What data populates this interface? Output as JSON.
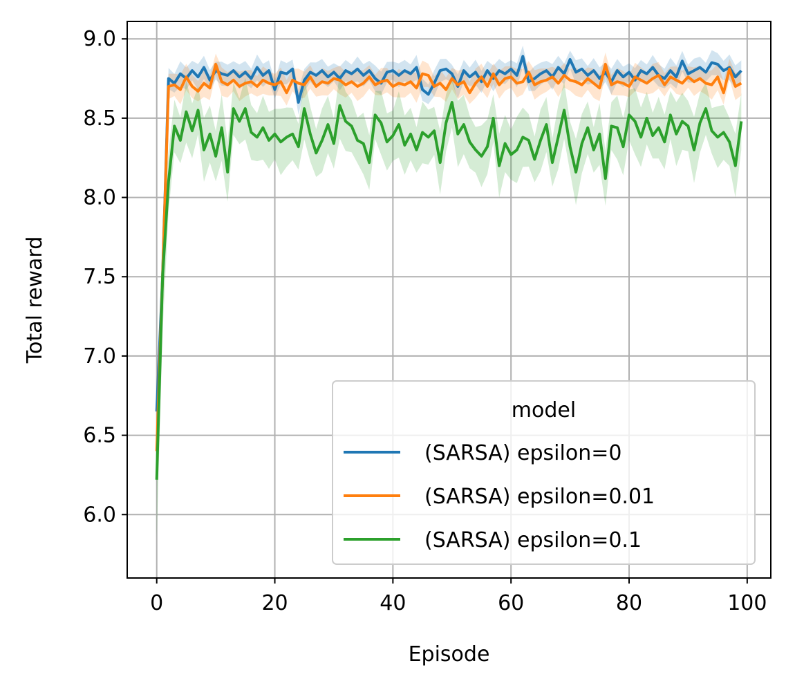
{
  "chart_data": {
    "type": "line",
    "title": "",
    "xlabel": "Episode",
    "ylabel": "Total reward",
    "xlim": [
      -5,
      104
    ],
    "ylim": [
      5.6,
      9.11
    ],
    "x_ticks": [
      0,
      20,
      40,
      60,
      80,
      100
    ],
    "y_ticks": [
      6.0,
      6.5,
      7.0,
      7.5,
      8.0,
      8.5,
      9.0
    ],
    "x_tick_labels": [
      "0",
      "20",
      "40",
      "60",
      "80",
      "100"
    ],
    "y_tick_labels": [
      "6.0",
      "6.5",
      "7.0",
      "7.5",
      "8.0",
      "8.5",
      "9.0"
    ],
    "grid": true,
    "legend": {
      "title": "model",
      "placement": "lower right"
    },
    "series": [
      {
        "name": "(SARSA) epsilon=0",
        "color": "#1f77b4",
        "band_halfwidth": 0.07,
        "y": [
          6.65,
          7.5,
          8.75,
          8.72,
          8.78,
          8.75,
          8.8,
          8.76,
          8.82,
          8.74,
          8.8,
          8.78,
          8.77,
          8.8,
          8.76,
          8.79,
          8.75,
          8.82,
          8.77,
          8.8,
          8.68,
          8.79,
          8.78,
          8.81,
          8.6,
          8.74,
          8.79,
          8.77,
          8.8,
          8.76,
          8.79,
          8.75,
          8.8,
          8.78,
          8.81,
          8.77,
          8.8,
          8.75,
          8.72,
          8.79,
          8.8,
          8.77,
          8.8,
          8.78,
          8.82,
          8.68,
          8.65,
          8.72,
          8.8,
          8.81,
          8.78,
          8.7,
          8.8,
          8.76,
          8.79,
          8.73,
          8.8,
          8.75,
          8.8,
          8.78,
          8.81,
          8.77,
          8.89,
          8.73,
          8.75,
          8.78,
          8.8,
          8.76,
          8.82,
          8.78,
          8.87,
          8.79,
          8.81,
          8.77,
          8.8,
          8.75,
          8.79,
          8.73,
          8.8,
          8.76,
          8.79,
          8.74,
          8.8,
          8.78,
          8.82,
          8.77,
          8.75,
          8.8,
          8.76,
          8.86,
          8.78,
          8.8,
          8.82,
          8.79,
          8.85,
          8.84,
          8.8,
          8.82,
          8.76,
          8.8
        ]
      },
      {
        "name": "(SARSA) epsilon=0.01",
        "color": "#ff7f0e",
        "band_halfwidth": 0.08,
        "y": [
          6.4,
          7.5,
          8.7,
          8.71,
          8.68,
          8.76,
          8.7,
          8.67,
          8.72,
          8.69,
          8.84,
          8.73,
          8.71,
          8.74,
          8.7,
          8.72,
          8.73,
          8.7,
          8.74,
          8.72,
          8.71,
          8.73,
          8.66,
          8.74,
          8.72,
          8.71,
          8.76,
          8.7,
          8.73,
          8.72,
          8.75,
          8.74,
          8.71,
          8.73,
          8.7,
          8.72,
          8.76,
          8.71,
          8.73,
          8.74,
          8.7,
          8.72,
          8.71,
          8.73,
          8.69,
          8.78,
          8.77,
          8.7,
          8.72,
          8.68,
          8.75,
          8.71,
          8.73,
          8.66,
          8.72,
          8.76,
          8.7,
          8.78,
          8.71,
          8.75,
          8.76,
          8.72,
          8.73,
          8.79,
          8.71,
          8.73,
          8.74,
          8.76,
          8.72,
          8.77,
          8.74,
          8.73,
          8.71,
          8.75,
          8.72,
          8.69,
          8.84,
          8.71,
          8.73,
          8.72,
          8.7,
          8.76,
          8.74,
          8.72,
          8.75,
          8.77,
          8.71,
          8.76,
          8.74,
          8.72,
          8.76,
          8.73,
          8.75,
          8.72,
          8.71,
          8.76,
          8.66,
          8.81,
          8.7,
          8.72
        ]
      },
      {
        "name": "(SARSA) epsilon=0.1",
        "color": "#2ca02c",
        "band_halfwidth": 0.18,
        "y": [
          6.22,
          7.5,
          8.1,
          8.45,
          8.36,
          8.54,
          8.42,
          8.55,
          8.3,
          8.4,
          8.26,
          8.44,
          8.16,
          8.56,
          8.48,
          8.56,
          8.41,
          8.38,
          8.44,
          8.36,
          8.4,
          8.35,
          8.38,
          8.4,
          8.32,
          8.56,
          8.4,
          8.28,
          8.36,
          8.46,
          8.34,
          8.58,
          8.48,
          8.45,
          8.36,
          8.34,
          8.22,
          8.52,
          8.47,
          8.35,
          8.39,
          8.46,
          8.33,
          8.4,
          8.3,
          8.41,
          8.38,
          8.42,
          8.22,
          8.47,
          8.6,
          8.4,
          8.46,
          8.35,
          8.3,
          8.26,
          8.32,
          8.5,
          8.2,
          8.34,
          8.27,
          8.3,
          8.38,
          8.36,
          8.24,
          8.36,
          8.46,
          8.22,
          8.38,
          8.55,
          8.32,
          8.16,
          8.34,
          8.44,
          8.3,
          8.4,
          8.12,
          8.45,
          8.44,
          8.32,
          8.52,
          8.48,
          8.38,
          8.5,
          8.39,
          8.44,
          8.35,
          8.52,
          8.4,
          8.48,
          8.45,
          8.3,
          8.47,
          8.56,
          8.42,
          8.38,
          8.41,
          8.35,
          8.2,
          8.48
        ]
      }
    ]
  }
}
